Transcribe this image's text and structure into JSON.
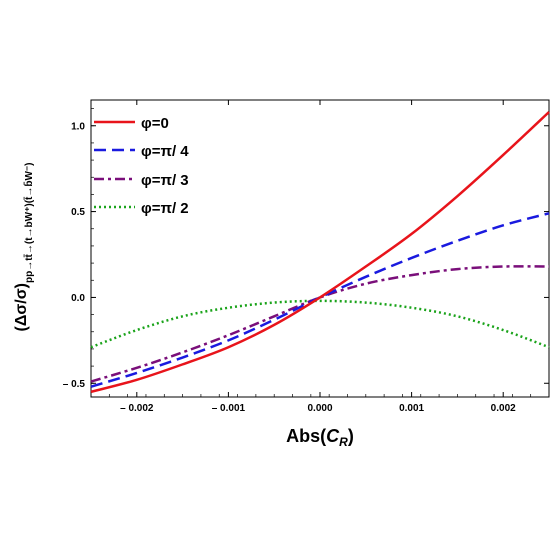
{
  "chart_data": {
    "type": "line",
    "xlabel": "Abs(C_R)",
    "xlabel_main": "Abs(",
    "xlabel_var": "C",
    "xlabel_sub": "R",
    "xlabel_close": ")",
    "ylabel": "(Δσ/σ)_{pp→tt̄→(t→bW⁺)(t̄→b̄W⁻)}",
    "ylabel_main": "(Δσ/σ)",
    "ylabel_sub": "pp→tt̄→(t→bW⁺)(t̄→b̄W⁻)",
    "xlim": [
      -0.0025,
      0.0025
    ],
    "ylim": [
      -0.58,
      1.15
    ],
    "x_ticks": [
      -0.002,
      -0.001,
      0.0,
      0.001,
      0.002
    ],
    "x_tick_labels": [
      "– 0.002",
      "– 0.001",
      "0.000",
      "0.001",
      "0.002"
    ],
    "y_ticks": [
      -0.5,
      0.0,
      0.5,
      1.0
    ],
    "y_tick_labels": [
      "– 0.5",
      "0.0",
      "0.5",
      "1.0"
    ],
    "grid": false,
    "legend_position": "top-left",
    "x": [
      -0.0025,
      -0.002,
      -0.0015,
      -0.001,
      -0.0005,
      0.0,
      0.0005,
      0.001,
      0.0015,
      0.002,
      0.0025
    ],
    "series": [
      {
        "name": "φ=0",
        "color": "#e8141b",
        "dash": "solid",
        "values": [
          -0.55,
          -0.48,
          -0.39,
          -0.29,
          -0.16,
          0.0,
          0.18,
          0.37,
          0.59,
          0.83,
          1.08
        ]
      },
      {
        "name": "φ=π/ 4",
        "color": "#1a1adf",
        "dash": "dashed",
        "values": [
          -0.52,
          -0.44,
          -0.35,
          -0.25,
          -0.13,
          0.0,
          0.12,
          0.23,
          0.33,
          0.42,
          0.49
        ]
      },
      {
        "name": "φ=π/ 3",
        "color": "#7a0f7a",
        "dash": "dashdot",
        "values": [
          -0.49,
          -0.41,
          -0.32,
          -0.22,
          -0.11,
          0.0,
          0.08,
          0.13,
          0.165,
          0.18,
          0.18
        ]
      },
      {
        "name": "φ=π/ 2",
        "color": "#1aa31a",
        "dash": "dotted",
        "values": [
          -0.29,
          -0.19,
          -0.11,
          -0.06,
          -0.03,
          -0.02,
          -0.03,
          -0.06,
          -0.11,
          -0.19,
          -0.29
        ]
      }
    ]
  }
}
